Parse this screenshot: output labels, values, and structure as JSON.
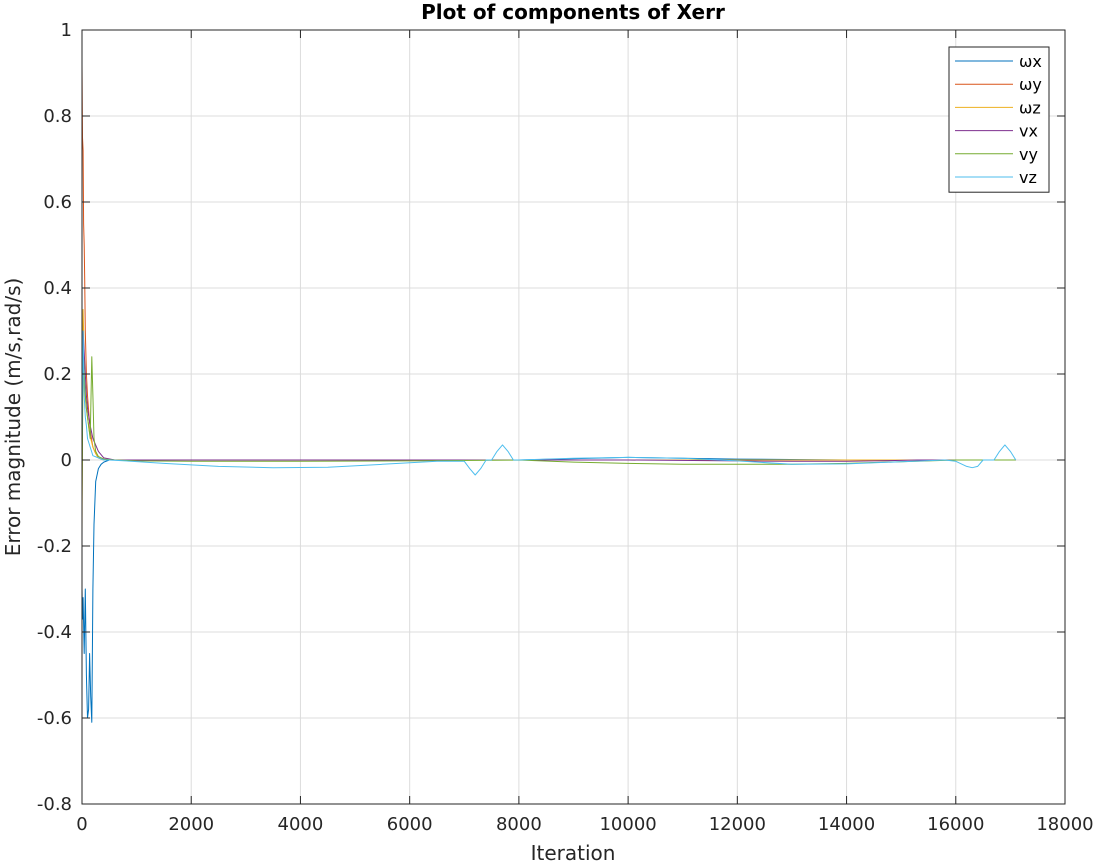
{
  "chart_data": {
    "type": "line",
    "title": "Plot of components of Xerr",
    "xlabel": "Iteration",
    "ylabel": "Error magnitude (m/s,rad/s)",
    "xlim": [
      0,
      18000
    ],
    "ylim": [
      -0.8,
      1
    ],
    "xticks": [
      0,
      2000,
      4000,
      6000,
      8000,
      10000,
      12000,
      14000,
      16000,
      18000
    ],
    "xtick_labels": [
      "0",
      "2000",
      "4000",
      "6000",
      "8000",
      "10000",
      "12000",
      "14000",
      "16000",
      "18000"
    ],
    "yticks": [
      -0.8,
      -0.6,
      -0.4,
      -0.2,
      0,
      0.2,
      0.4,
      0.6,
      0.8,
      1
    ],
    "ytick_labels": [
      "-0.8",
      "-0.6",
      "-0.4",
      "-0.2",
      "0",
      "0.2",
      "0.4",
      "0.6",
      "0.8",
      "1"
    ],
    "grid": true,
    "legend_position": "top-right",
    "series": [
      {
        "name": "ωx",
        "color": "#0072BD",
        "x": [
          0,
          10,
          20,
          40,
          60,
          80,
          100,
          120,
          140,
          160,
          180,
          200,
          220,
          250,
          300,
          350,
          400,
          500,
          600,
          1000,
          2000,
          4000,
          6000,
          8000,
          10000,
          12000,
          14000,
          16000,
          17100
        ],
        "y": [
          -0.3,
          -0.37,
          -0.32,
          -0.45,
          -0.3,
          -0.5,
          -0.6,
          -0.58,
          -0.45,
          -0.55,
          -0.61,
          -0.3,
          -0.15,
          -0.05,
          -0.02,
          -0.01,
          -0.005,
          0,
          0,
          0,
          0,
          0,
          0,
          0,
          0.006,
          0.002,
          0,
          0,
          0
        ]
      },
      {
        "name": "ωy",
        "color": "#D95319",
        "x": [
          0,
          10,
          20,
          30,
          40,
          50,
          60,
          80,
          100,
          130,
          160,
          200,
          250,
          300,
          400,
          600,
          1000,
          4000,
          8000,
          12000,
          16000,
          17100
        ],
        "y": [
          0.92,
          0.75,
          0.72,
          0.55,
          0.5,
          0.42,
          0.3,
          0.2,
          0.15,
          0.1,
          0.06,
          0.03,
          0.015,
          0.005,
          0,
          0,
          0,
          0,
          0,
          0,
          0,
          0
        ]
      },
      {
        "name": "ωz",
        "color": "#EDB120",
        "x": [
          0,
          10,
          20,
          30,
          40,
          60,
          80,
          100,
          130,
          160,
          200,
          250,
          300,
          400,
          600,
          1000,
          4000,
          8000,
          12000,
          16000,
          17100
        ],
        "y": [
          -0.17,
          0.1,
          0.35,
          0.3,
          0.2,
          0.15,
          0.12,
          0.1,
          0.07,
          0.05,
          0.03,
          0.015,
          0.005,
          0,
          0,
          0,
          0,
          0,
          0,
          0,
          0
        ]
      },
      {
        "name": "vx",
        "color": "#7E2F8E",
        "x": [
          0,
          20,
          40,
          60,
          80,
          100,
          150,
          200,
          300,
          400,
          600,
          2000,
          6000,
          8000,
          10000,
          12000,
          13000,
          14000,
          15000,
          15300,
          16000,
          17100
        ],
        "y": [
          0.05,
          0.3,
          0.25,
          0.2,
          0.15,
          0.12,
          0.08,
          0.05,
          0.02,
          0.005,
          0,
          0,
          0,
          0,
          0,
          -0.002,
          -0.003,
          -0.003,
          -0.001,
          0,
          0,
          0
        ]
      },
      {
        "name": "vy",
        "color": "#77AC30",
        "x": [
          0,
          20,
          40,
          60,
          80,
          100,
          150,
          180,
          200,
          220,
          250,
          300,
          400,
          600,
          1000,
          2000,
          4000,
          6000,
          8000,
          9000,
          10000,
          11000,
          12000,
          13000,
          14000,
          15000,
          16000,
          17100
        ],
        "y": [
          -0.1,
          0.26,
          0.2,
          0.15,
          0.12,
          0.1,
          0.05,
          0.24,
          0.15,
          0.05,
          0.02,
          0.008,
          0.002,
          0,
          -0.002,
          -0.003,
          -0.003,
          -0.002,
          0,
          -0.005,
          -0.008,
          -0.01,
          -0.01,
          -0.01,
          -0.008,
          -0.004,
          0,
          0
        ]
      },
      {
        "name": "vz",
        "color": "#4DBEEE",
        "x": [
          0,
          20,
          40,
          60,
          80,
          100,
          150,
          200,
          300,
          400,
          500,
          800,
          1500,
          2500,
          3500,
          4500,
          5500,
          6500,
          7000,
          7100,
          7200,
          7300,
          7400,
          7500,
          7600,
          7700,
          7800,
          7900,
          8000,
          8500,
          9000,
          10000,
          11000,
          12000,
          13000,
          14000,
          15000,
          15800,
          16000,
          16200,
          16300,
          16400,
          16500,
          16700,
          16800,
          16900,
          17000,
          17100
        ],
        "y": [
          0.05,
          0.3,
          0.15,
          0.1,
          0.08,
          0.05,
          0.03,
          0.01,
          0.005,
          0,
          0,
          -0.002,
          -0.008,
          -0.015,
          -0.018,
          -0.017,
          -0.01,
          -0.003,
          -0.003,
          -0.02,
          -0.035,
          -0.02,
          0,
          0,
          0.02,
          0.035,
          0.02,
          0,
          0,
          0.002,
          0.004,
          0.006,
          0.004,
          -0.002,
          -0.01,
          -0.009,
          -0.004,
          0,
          -0.003,
          -0.015,
          -0.018,
          -0.015,
          0,
          0,
          0.02,
          0.035,
          0.02,
          0
        ]
      }
    ]
  }
}
